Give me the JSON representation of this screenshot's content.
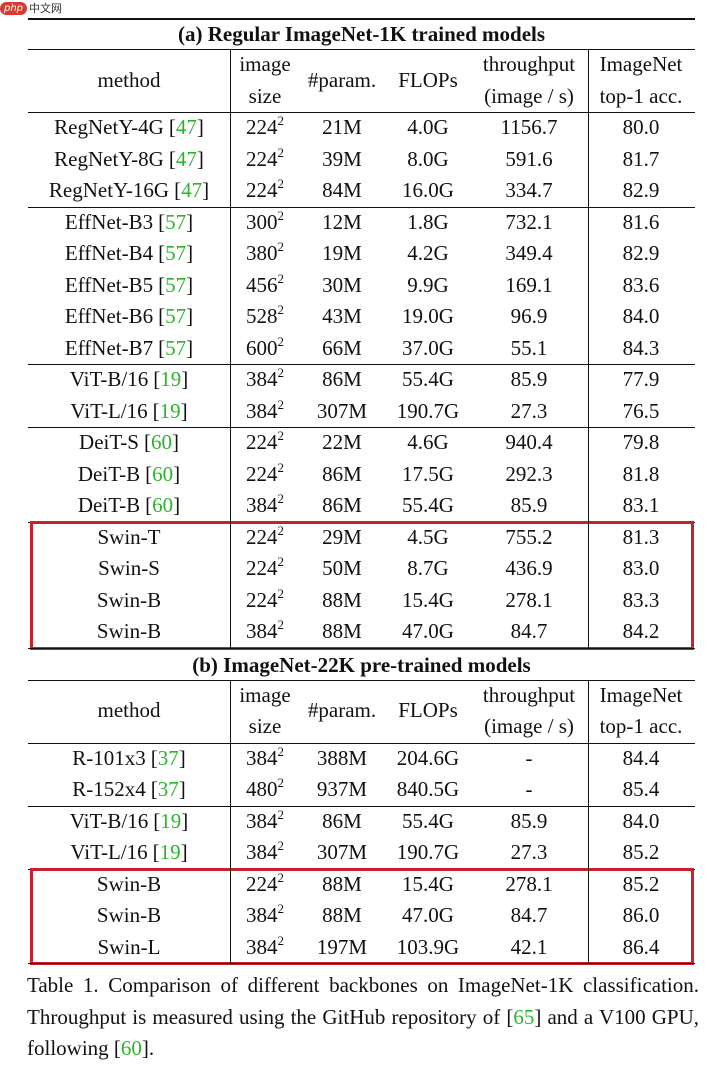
{
  "watermark": {
    "logo": "php",
    "site": "中文网"
  },
  "sections": [
    {
      "title": "(a) Regular ImageNet-1K trained models",
      "header": [
        [
          "method"
        ],
        [
          "image",
          "size"
        ],
        [
          "#param."
        ],
        [
          "FLOPs"
        ],
        [
          "throughput",
          "(image / s)"
        ],
        [
          "ImageNet",
          "top-1 acc."
        ]
      ],
      "groups": [
        {
          "highlight": false,
          "rows": [
            {
              "method": "RegNetY-4G",
              "ref": [
                "[",
                "47",
                "]"
              ],
              "size": "224",
              "size_exp": "2",
              "params": "21M",
              "flops": "4.0G",
              "throughput": "1156.7",
              "acc": "80.0"
            },
            {
              "method": "RegNetY-8G",
              "ref": [
                "[",
                "47",
                "]"
              ],
              "size": "224",
              "size_exp": "2",
              "params": "39M",
              "flops": "8.0G",
              "throughput": "591.6",
              "acc": "81.7"
            },
            {
              "method": "RegNetY-16G",
              "ref": [
                "[",
                "47",
                "]"
              ],
              "size": "224",
              "size_exp": "2",
              "params": "84M",
              "flops": "16.0G",
              "throughput": "334.7",
              "acc": "82.9"
            }
          ]
        },
        {
          "highlight": false,
          "rows": [
            {
              "method": "EffNet-B3",
              "ref": [
                "[",
                "57",
                "]"
              ],
              "size": "300",
              "size_exp": "2",
              "params": "12M",
              "flops": "1.8G",
              "throughput": "732.1",
              "acc": "81.6"
            },
            {
              "method": "EffNet-B4",
              "ref": [
                "[",
                "57",
                "]"
              ],
              "size": "380",
              "size_exp": "2",
              "params": "19M",
              "flops": "4.2G",
              "throughput": "349.4",
              "acc": "82.9"
            },
            {
              "method": "EffNet-B5",
              "ref": [
                "[",
                "57",
                "]"
              ],
              "size": "456",
              "size_exp": "2",
              "params": "30M",
              "flops": "9.9G",
              "throughput": "169.1",
              "acc": "83.6"
            },
            {
              "method": "EffNet-B6",
              "ref": [
                "[",
                "57",
                "]"
              ],
              "size": "528",
              "size_exp": "2",
              "params": "43M",
              "flops": "19.0G",
              "throughput": "96.9",
              "acc": "84.0"
            },
            {
              "method": "EffNet-B7",
              "ref": [
                "[",
                "57",
                "]"
              ],
              "size": "600",
              "size_exp": "2",
              "params": "66M",
              "flops": "37.0G",
              "throughput": "55.1",
              "acc": "84.3"
            }
          ]
        },
        {
          "highlight": false,
          "rows": [
            {
              "method": "ViT-B/16",
              "ref": [
                "[",
                "19",
                "]"
              ],
              "size": "384",
              "size_exp": "2",
              "params": "86M",
              "flops": "55.4G",
              "throughput": "85.9",
              "acc": "77.9"
            },
            {
              "method": "ViT-L/16",
              "ref": [
                "[",
                "19",
                "]"
              ],
              "size": "384",
              "size_exp": "2",
              "params": "307M",
              "flops": "190.7G",
              "throughput": "27.3",
              "acc": "76.5"
            }
          ]
        },
        {
          "highlight": false,
          "rows": [
            {
              "method": "DeiT-S",
              "ref": [
                "[",
                "60",
                "]"
              ],
              "size": "224",
              "size_exp": "2",
              "params": "22M",
              "flops": "4.6G",
              "throughput": "940.4",
              "acc": "79.8"
            },
            {
              "method": "DeiT-B",
              "ref": [
                "[",
                "60",
                "]"
              ],
              "size": "224",
              "size_exp": "2",
              "params": "86M",
              "flops": "17.5G",
              "throughput": "292.3",
              "acc": "81.8"
            },
            {
              "method": "DeiT-B",
              "ref": [
                "[",
                "60",
                "]"
              ],
              "size": "384",
              "size_exp": "2",
              "params": "86M",
              "flops": "55.4G",
              "throughput": "85.9",
              "acc": "83.1"
            }
          ]
        },
        {
          "highlight": true,
          "rows": [
            {
              "method": "Swin-T",
              "size": "224",
              "size_exp": "2",
              "params": "29M",
              "flops": "4.5G",
              "throughput": "755.2",
              "acc": "81.3"
            },
            {
              "method": "Swin-S",
              "size": "224",
              "size_exp": "2",
              "params": "50M",
              "flops": "8.7G",
              "throughput": "436.9",
              "acc": "83.0"
            },
            {
              "method": "Swin-B",
              "size": "224",
              "size_exp": "2",
              "params": "88M",
              "flops": "15.4G",
              "throughput": "278.1",
              "acc": "83.3"
            },
            {
              "method": "Swin-B",
              "size": "384",
              "size_exp": "2",
              "params": "88M",
              "flops": "47.0G",
              "throughput": "84.7",
              "acc": "84.2"
            }
          ]
        }
      ]
    },
    {
      "title": "(b) ImageNet-22K pre-trained models",
      "header": [
        [
          "method"
        ],
        [
          "image",
          "size"
        ],
        [
          "#param."
        ],
        [
          "FLOPs"
        ],
        [
          "throughput",
          "(image / s)"
        ],
        [
          "ImageNet",
          "top-1 acc."
        ]
      ],
      "groups": [
        {
          "highlight": false,
          "rows": [
            {
              "method": "R-101x3",
              "ref": [
                "[",
                "37",
                "]"
              ],
              "size": "384",
              "size_exp": "2",
              "params": "388M",
              "flops": "204.6G",
              "throughput": "-",
              "acc": "84.4"
            },
            {
              "method": "R-152x4",
              "ref": [
                "[",
                "37",
                "]"
              ],
              "size": "480",
              "size_exp": "2",
              "params": "937M",
              "flops": "840.5G",
              "throughput": "-",
              "acc": "85.4"
            }
          ]
        },
        {
          "highlight": false,
          "rows": [
            {
              "method": "ViT-B/16",
              "ref": [
                "[",
                "19",
                "]"
              ],
              "size": "384",
              "size_exp": "2",
              "params": "86M",
              "flops": "55.4G",
              "throughput": "85.9",
              "acc": "84.0"
            },
            {
              "method": "ViT-L/16",
              "ref": [
                "[",
                "19",
                "]"
              ],
              "size": "384",
              "size_exp": "2",
              "params": "307M",
              "flops": "190.7G",
              "throughput": "27.3",
              "acc": "85.2"
            }
          ]
        },
        {
          "highlight": true,
          "rows": [
            {
              "method": "Swin-B",
              "size": "224",
              "size_exp": "2",
              "params": "88M",
              "flops": "15.4G",
              "throughput": "278.1",
              "acc": "85.2"
            },
            {
              "method": "Swin-B",
              "size": "384",
              "size_exp": "2",
              "params": "88M",
              "flops": "47.0G",
              "throughput": "84.7",
              "acc": "86.0"
            },
            {
              "method": "Swin-L",
              "size": "384",
              "size_exp": "2",
              "params": "197M",
              "flops": "103.9G",
              "throughput": "42.1",
              "acc": "86.4"
            }
          ]
        }
      ]
    }
  ],
  "caption": [
    "Table 1. Comparison of different backbones on ImageNet-1K classification. Throughput is measured using the GitHub repository of [",
    "65",
    "] and a V100 GPU, following [",
    "60",
    "]."
  ]
}
